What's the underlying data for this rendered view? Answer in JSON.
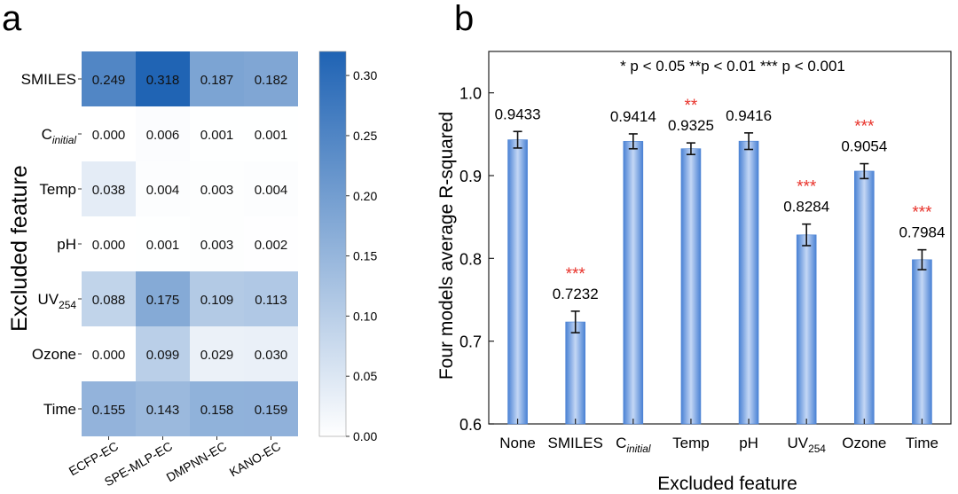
{
  "chart_data": [
    {
      "panel_label": "a",
      "type": "heatmap",
      "ylabel": "Excluded feature",
      "rows": [
        {
          "base": "SMILES",
          "sub": ""
        },
        {
          "base": "C",
          "sub": "initial"
        },
        {
          "base": "Temp",
          "sub": ""
        },
        {
          "base": "pH",
          "sub": ""
        },
        {
          "base": "UV",
          "sub": "254"
        },
        {
          "base": "Ozone",
          "sub": ""
        },
        {
          "base": "Time",
          "sub": ""
        }
      ],
      "columns": [
        "ECFP-EC",
        "SPE-MLP-EC",
        "DMPNN-EC",
        "KANO-EC"
      ],
      "values": [
        [
          0.249,
          0.318,
          0.187,
          0.182
        ],
        [
          0.0,
          0.006,
          0.001,
          0.001
        ],
        [
          0.038,
          0.004,
          0.003,
          0.004
        ],
        [
          0.0,
          0.001,
          0.003,
          0.002
        ],
        [
          0.088,
          0.175,
          0.109,
          0.113
        ],
        [
          0.0,
          0.099,
          0.029,
          0.03
        ],
        [
          0.155,
          0.143,
          0.158,
          0.159
        ]
      ],
      "value_labels": [
        [
          "0.249",
          "0.318",
          "0.187",
          "0.182"
        ],
        [
          "0.000",
          "0.006",
          "0.001",
          "0.001"
        ],
        [
          "0.038",
          "0.004",
          "0.003",
          "0.004"
        ],
        [
          "0.000",
          "0.001",
          "0.003",
          "0.002"
        ],
        [
          "0.088",
          "0.175",
          "0.109",
          "0.113"
        ],
        [
          "0.000",
          "0.099",
          "0.029",
          "0.030"
        ],
        [
          "0.155",
          "0.143",
          "0.158",
          "0.159"
        ]
      ],
      "colorbar": {
        "range": [
          0,
          0.32
        ],
        "ticks": [
          0.0,
          0.05,
          0.1,
          0.15,
          0.2,
          0.25,
          0.3
        ],
        "tick_labels": [
          "0.00",
          "0.05",
          "0.10",
          "0.15",
          "0.20",
          "0.25",
          "0.30"
        ],
        "color_low": "#ffffff",
        "color_high": "#1f63b4"
      }
    },
    {
      "panel_label": "b",
      "type": "bar",
      "xlabel": "Excluded feature",
      "ylabel": "Four models average R-squared",
      "annotation": "* p < 0.05 **p < 0.01 *** p < 0.001",
      "ylim": [
        0.6,
        1.05
      ],
      "yticks": [
        0.6,
        0.7,
        0.8,
        0.9,
        1.0
      ],
      "ytick_labels": [
        "0.6",
        "0.7",
        "0.8",
        "0.9",
        "1.0"
      ],
      "categories": [
        {
          "base": "None",
          "sub": ""
        },
        {
          "base": "SMILES",
          "sub": ""
        },
        {
          "base": "C",
          "sub": "initial"
        },
        {
          "base": "Temp",
          "sub": ""
        },
        {
          "base": "pH",
          "sub": ""
        },
        {
          "base": "UV",
          "sub": "254"
        },
        {
          "base": "Ozone",
          "sub": ""
        },
        {
          "base": "Time",
          "sub": ""
        }
      ],
      "values": [
        0.9433,
        0.7232,
        0.9414,
        0.9325,
        0.9416,
        0.8284,
        0.9054,
        0.7984
      ],
      "value_labels": [
        "0.9433",
        "0.7232",
        "0.9414",
        "0.9325",
        "0.9416",
        "0.8284",
        "0.9054",
        "0.7984"
      ],
      "error": [
        0.01,
        0.013,
        0.009,
        0.007,
        0.01,
        0.013,
        0.009,
        0.012
      ],
      "significance": [
        "",
        "***",
        "",
        "**",
        "",
        "***",
        "***",
        "***"
      ],
      "bar_color": "#4a82d4",
      "bar_color_light": "#c4d7f5",
      "significance_color": "#e8322a"
    }
  ]
}
